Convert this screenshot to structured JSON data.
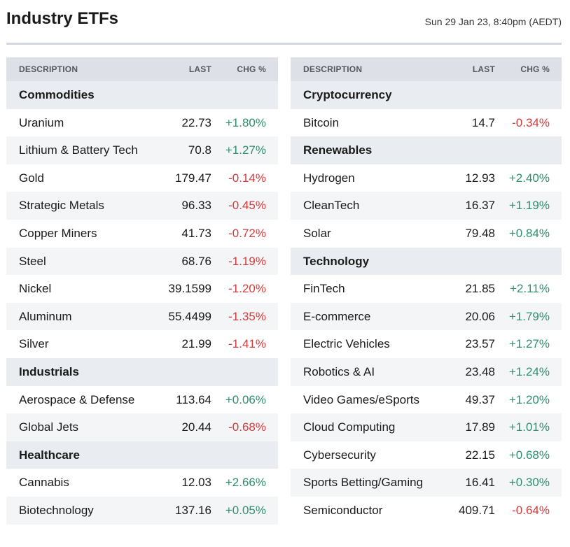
{
  "header": {
    "title": "Industry ETFs",
    "timestamp": "Sun 29 Jan 23, 8:40pm (AEDT)"
  },
  "columns": {
    "description": "DESCRIPTION",
    "last": "LAST",
    "chg": "CHG %"
  },
  "colors": {
    "positive": "#2f8f6f",
    "negative": "#d23c3c",
    "header_bg": "#dde1e7",
    "group_bg": "#e9ecf0"
  },
  "left_table": {
    "groups": [
      {
        "name": "Commodities",
        "rows": [
          {
            "name": "Uranium",
            "last": "22.73",
            "chg": "+1.80%"
          },
          {
            "name": "Lithium & Battery Tech",
            "last": "70.8",
            "chg": "+1.27%"
          },
          {
            "name": "Gold",
            "last": "179.47",
            "chg": "-0.14%"
          },
          {
            "name": "Strategic Metals",
            "last": "96.33",
            "chg": "-0.45%"
          },
          {
            "name": "Copper Miners",
            "last": "41.73",
            "chg": "-0.72%"
          },
          {
            "name": "Steel",
            "last": "68.76",
            "chg": "-1.19%"
          },
          {
            "name": "Nickel",
            "last": "39.1599",
            "chg": "-1.20%"
          },
          {
            "name": "Aluminum",
            "last": "55.4499",
            "chg": "-1.35%"
          },
          {
            "name": "Silver",
            "last": "21.99",
            "chg": "-1.41%"
          }
        ]
      },
      {
        "name": "Industrials",
        "rows": [
          {
            "name": "Aerospace & Defense",
            "last": "113.64",
            "chg": "+0.06%"
          },
          {
            "name": "Global Jets",
            "last": "20.44",
            "chg": "-0.68%"
          }
        ]
      },
      {
        "name": "Healthcare",
        "rows": [
          {
            "name": "Cannabis",
            "last": "12.03",
            "chg": "+2.66%"
          },
          {
            "name": "Biotechnology",
            "last": "137.16",
            "chg": "+0.05%"
          }
        ]
      }
    ]
  },
  "right_table": {
    "groups": [
      {
        "name": "Cryptocurrency",
        "rows": [
          {
            "name": "Bitcoin",
            "last": "14.7",
            "chg": "-0.34%"
          }
        ]
      },
      {
        "name": "Renewables",
        "rows": [
          {
            "name": "Hydrogen",
            "last": "12.93",
            "chg": "+2.40%"
          },
          {
            "name": "CleanTech",
            "last": "16.37",
            "chg": "+1.19%"
          },
          {
            "name": "Solar",
            "last": "79.48",
            "chg": "+0.84%"
          }
        ]
      },
      {
        "name": "Technology",
        "rows": [
          {
            "name": "FinTech",
            "last": "21.85",
            "chg": "+2.11%"
          },
          {
            "name": "E-commerce",
            "last": "20.06",
            "chg": "+1.79%"
          },
          {
            "name": "Electric Vehicles",
            "last": "23.57",
            "chg": "+1.27%"
          },
          {
            "name": "Robotics & AI",
            "last": "23.48",
            "chg": "+1.24%"
          },
          {
            "name": "Video Games/eSports",
            "last": "49.37",
            "chg": "+1.20%"
          },
          {
            "name": "Cloud Computing",
            "last": "17.89",
            "chg": "+1.01%"
          },
          {
            "name": "Cybersecurity",
            "last": "22.15",
            "chg": "+0.68%"
          },
          {
            "name": "Sports Betting/Gaming",
            "last": "16.41",
            "chg": "+0.30%"
          },
          {
            "name": "Semiconductor",
            "last": "409.71",
            "chg": "-0.64%"
          }
        ]
      }
    ]
  }
}
